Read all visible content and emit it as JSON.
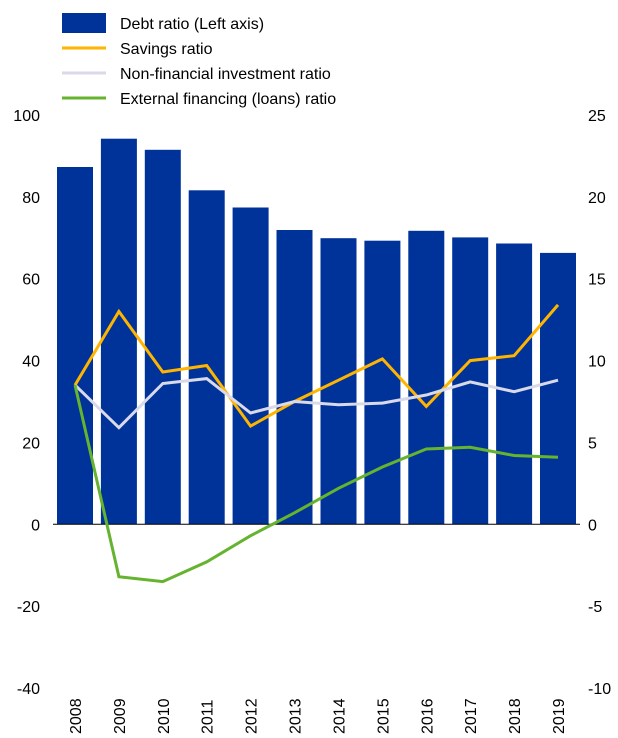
{
  "chart_data": {
    "type": "bar",
    "title": "",
    "xlabel": "",
    "ylabel": "",
    "categories": [
      "2008",
      "2009",
      "2010",
      "2011",
      "2012",
      "2013",
      "2014",
      "2015",
      "2016",
      "2017",
      "2018",
      "2019"
    ],
    "ylim_left": [
      -40,
      100
    ],
    "ylim_right": [
      -10,
      25
    ],
    "left_ticks": [
      100,
      80,
      60,
      40,
      20,
      0,
      -20,
      -40
    ],
    "right_ticks": [
      25,
      20,
      15,
      10,
      5,
      0,
      -5,
      -10
    ],
    "grid": false,
    "legend_position": "top-left",
    "series": [
      {
        "name": "Debt ratio (Left axis)",
        "type": "bar",
        "axis": "left",
        "color": "#003399",
        "values": [
          87.3,
          94.2,
          91.5,
          81.6,
          77.4,
          71.9,
          69.9,
          69.3,
          71.7,
          70.1,
          68.6,
          66.3
        ]
      },
      {
        "name": "Savings ratio",
        "type": "line",
        "axis": "right",
        "color": "#ffb400",
        "values": [
          8.5,
          13.0,
          9.3,
          9.7,
          6.0,
          7.5,
          8.8,
          10.1,
          7.2,
          10.0,
          10.3,
          13.4
        ]
      },
      {
        "name": "Non-financial investment ratio",
        "type": "line",
        "axis": "right",
        "color": "#d9d9e8",
        "values": [
          8.5,
          5.9,
          8.6,
          8.9,
          6.8,
          7.5,
          7.3,
          7.4,
          7.9,
          8.7,
          8.1,
          8.8
        ]
      },
      {
        "name": "External financing (loans) ratio",
        "type": "line",
        "axis": "right",
        "color": "#65b32e",
        "values": [
          8.5,
          -3.2,
          -3.5,
          -2.3,
          -0.7,
          0.7,
          2.2,
          3.5,
          4.6,
          4.7,
          4.2,
          4.1
        ]
      }
    ]
  }
}
